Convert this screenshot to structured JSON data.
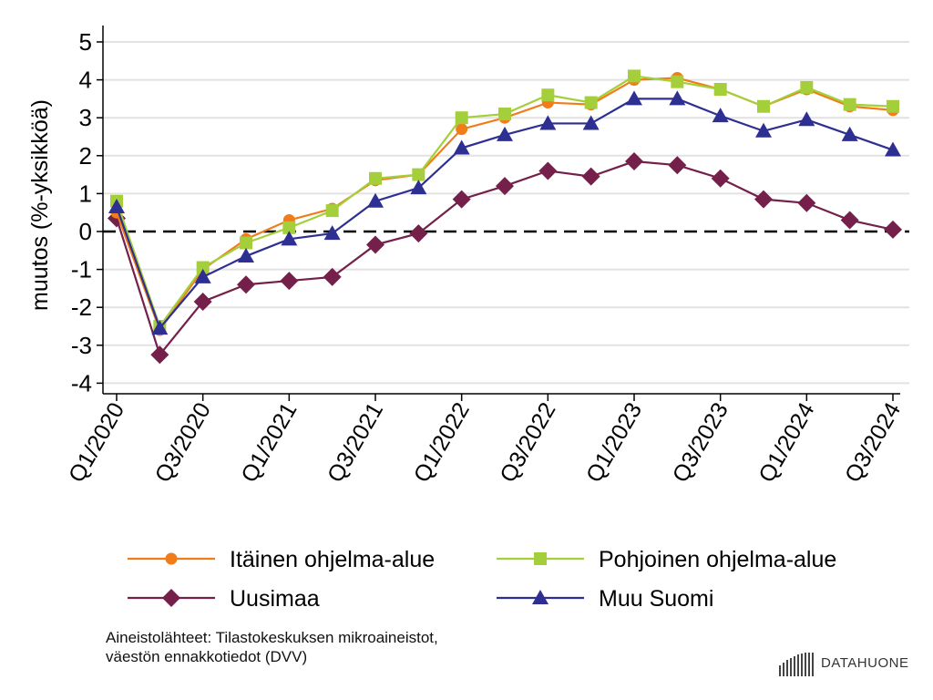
{
  "chart_data": {
    "type": "line",
    "ylabel": "muutos (%-yksikköä)",
    "xlabel": "",
    "ylim": [
      -4,
      5
    ],
    "yticks": [
      5,
      4,
      3,
      2,
      1,
      0,
      -1,
      -2,
      -3,
      -4
    ],
    "grid": true,
    "reference_line": {
      "y": 0,
      "style": "dashed"
    },
    "legend_position": "bottom",
    "categories": [
      "Q1/2020",
      "Q2/2020",
      "Q3/2020",
      "Q4/2020",
      "Q1/2021",
      "Q2/2021",
      "Q3/2021",
      "Q4/2021",
      "Q1/2022",
      "Q2/2022",
      "Q3/2022",
      "Q4/2022",
      "Q1/2023",
      "Q2/2023",
      "Q3/2023",
      "Q4/2023",
      "Q1/2024",
      "Q2/2024",
      "Q3/2024"
    ],
    "tick_labels": [
      "Q1/2020",
      "Q3/2020",
      "Q1/2021",
      "Q3/2021",
      "Q1/2022",
      "Q3/2022",
      "Q1/2023",
      "Q3/2023",
      "Q1/2024",
      "Q3/2024"
    ],
    "series": [
      {
        "name": "Itäinen ohjelma-alue",
        "color": "#f07d1a",
        "marker": "circle",
        "values": [
          0.5,
          -2.6,
          -1.0,
          -0.2,
          0.3,
          0.6,
          1.35,
          1.5,
          2.7,
          3.0,
          3.4,
          3.35,
          4.0,
          4.05,
          3.75,
          3.3,
          3.75,
          3.3,
          3.2
        ]
      },
      {
        "name": "Pohjoinen ohjelma-alue",
        "color": "#a4cf3a",
        "marker": "square",
        "values": [
          0.8,
          -2.5,
          -0.95,
          -0.3,
          0.1,
          0.55,
          1.4,
          1.5,
          3.0,
          3.1,
          3.6,
          3.4,
          4.1,
          3.95,
          3.75,
          3.3,
          3.8,
          3.35,
          3.3
        ]
      },
      {
        "name": "Uusimaa",
        "color": "#74204a",
        "marker": "diamond",
        "values": [
          0.35,
          -3.25,
          -1.85,
          -1.4,
          -1.3,
          -1.2,
          -0.35,
          -0.05,
          0.85,
          1.2,
          1.6,
          1.45,
          1.85,
          1.75,
          1.4,
          0.85,
          0.75,
          0.3,
          0.05
        ]
      },
      {
        "name": "Muu Suomi",
        "color": "#2e2f92",
        "marker": "triangle",
        "values": [
          0.65,
          -2.55,
          -1.2,
          -0.65,
          -0.2,
          -0.05,
          0.8,
          1.15,
          2.2,
          2.55,
          2.85,
          2.85,
          3.5,
          3.5,
          3.05,
          2.65,
          2.95,
          2.55,
          2.15
        ]
      }
    ]
  },
  "source": {
    "line1": "Aineistolähteet: Tilastokeskuksen mikroaineistot,",
    "line2": "väestön ennakkotiedot (DVV)"
  },
  "logo": {
    "text": "DATAHUONE"
  }
}
